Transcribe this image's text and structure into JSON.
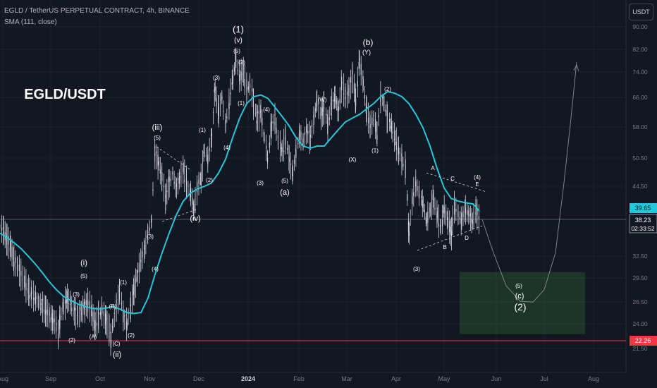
{
  "header": {
    "title": "EGLD / TetherUS PERPETUAL CONTRACT, 4h, BINANCE",
    "indicator": "SMA (111, close)",
    "currency_button": "USDT"
  },
  "colors": {
    "background": "#131722",
    "candles": "#d1d4dc",
    "sma": "#26c6da",
    "grid": "#1e222d",
    "support_line": "#f23645",
    "target_zone": "rgba(56,142,60,0.25)",
    "projection": "#8a8d96",
    "labels": "#ffffff"
  },
  "chart_data": {
    "type": "candlestick",
    "title": "EGLD/USDT",
    "y_axis": {
      "ticks": [
        "90.00",
        "82.00",
        "74.00",
        "66.00",
        "58.00",
        "50.50",
        "44.50",
        "38.23",
        "32.50",
        "29.50",
        "26.50",
        "24.00",
        "21.50"
      ],
      "scale": "log",
      "range": [
        20.5,
        92
      ]
    },
    "x_axis": {
      "ticks": [
        "Aug",
        "Sep",
        "Oct",
        "Nov",
        "Dec",
        "2024",
        "Feb",
        "Mar",
        "Apr",
        "May",
        "Jun",
        "Jul",
        "Aug"
      ]
    },
    "price_labels": [
      {
        "label": "39.65",
        "color": "#26c6da"
      },
      {
        "label": "38.23",
        "sub": "02:33:52",
        "color": "#ffffff"
      },
      {
        "label": "22.26",
        "color": "#f23645"
      }
    ],
    "current_price": 38.23,
    "sma_value": 39.65,
    "support_level": 22.26,
    "countdown": "02:33:52",
    "series": [
      {
        "name": "SMA (111, close)",
        "values": [
          [
            0,
            36
          ],
          [
            4,
            35.3
          ],
          [
            8,
            34.5
          ],
          [
            12,
            33.6
          ],
          [
            16,
            32.5
          ],
          [
            20,
            31.4
          ],
          [
            24,
            30.2
          ],
          [
            28,
            29
          ],
          [
            32,
            28
          ],
          [
            36,
            27.2
          ],
          [
            40,
            26.7
          ],
          [
            44,
            26.3
          ],
          [
            48,
            26
          ],
          [
            52,
            25.8
          ],
          [
            56,
            25.7
          ],
          [
            60,
            25.8
          ],
          [
            64,
            26
          ],
          [
            68,
            25.7
          ],
          [
            72,
            25.3
          ],
          [
            76,
            25.2
          ],
          [
            80,
            25.3
          ],
          [
            84,
            27
          ],
          [
            88,
            30
          ],
          [
            92,
            33
          ],
          [
            96,
            36
          ],
          [
            100,
            39
          ],
          [
            104,
            41.5
          ],
          [
            108,
            43
          ],
          [
            112,
            43.8
          ],
          [
            116,
            44.3
          ],
          [
            120,
            45
          ],
          [
            124,
            47
          ],
          [
            128,
            50
          ],
          [
            132,
            55
          ],
          [
            136,
            60
          ],
          [
            140,
            64
          ],
          [
            144,
            66
          ],
          [
            148,
            66.5
          ],
          [
            152,
            65.5
          ],
          [
            156,
            63
          ],
          [
            160,
            60.5
          ],
          [
            164,
            58
          ],
          [
            168,
            55
          ],
          [
            172,
            53
          ],
          [
            176,
            52.5
          ],
          [
            180,
            53
          ],
          [
            184,
            53
          ],
          [
            188,
            55
          ],
          [
            192,
            57
          ],
          [
            196,
            59
          ],
          [
            200,
            60
          ],
          [
            204,
            61
          ],
          [
            208,
            62.5
          ],
          [
            212,
            64
          ],
          [
            216,
            66
          ],
          [
            220,
            67.5
          ],
          [
            224,
            67
          ],
          [
            228,
            66
          ],
          [
            232,
            64
          ],
          [
            236,
            61
          ],
          [
            240,
            57.5
          ],
          [
            244,
            53
          ],
          [
            248,
            48
          ],
          [
            252,
            44
          ],
          [
            256,
            42
          ],
          [
            260,
            41.5
          ],
          [
            264,
            41.2
          ],
          [
            268,
            41
          ],
          [
            270,
            40.5
          ],
          [
            272,
            39.65
          ]
        ]
      }
    ],
    "ohlc_path": [
      [
        0,
        37
      ],
      [
        2,
        36.5
      ],
      [
        4,
        35
      ],
      [
        6,
        34
      ],
      [
        8,
        32
      ],
      [
        10,
        31
      ],
      [
        12,
        30
      ],
      [
        14,
        29
      ],
      [
        16,
        28
      ],
      [
        18,
        27.5
      ],
      [
        20,
        27
      ],
      [
        22,
        26.5
      ],
      [
        24,
        26
      ],
      [
        26,
        25.5
      ],
      [
        28,
        25
      ],
      [
        30,
        24.5
      ],
      [
        32,
        24
      ],
      [
        33,
        23
      ],
      [
        34,
        24.5
      ],
      [
        36,
        26
      ],
      [
        38,
        27
      ],
      [
        40,
        26.5
      ],
      [
        42,
        25.5
      ],
      [
        44,
        25
      ],
      [
        46,
        25.5
      ],
      [
        48,
        26
      ],
      [
        50,
        26.5
      ],
      [
        52,
        25.5
      ],
      [
        54,
        24
      ],
      [
        56,
        25
      ],
      [
        58,
        25.5
      ],
      [
        60,
        24.5
      ],
      [
        62,
        23.5
      ],
      [
        63,
        22.4
      ],
      [
        64,
        24
      ],
      [
        66,
        26
      ],
      [
        68,
        28
      ],
      [
        70,
        25
      ],
      [
        72,
        24
      ],
      [
        74,
        26
      ],
      [
        76,
        28
      ],
      [
        78,
        30
      ],
      [
        80,
        32
      ],
      [
        82,
        33.5
      ],
      [
        84,
        36
      ],
      [
        86,
        38
      ],
      [
        88,
        52
      ],
      [
        90,
        49
      ],
      [
        92,
        46
      ],
      [
        94,
        42
      ],
      [
        96,
        45
      ],
      [
        98,
        47
      ],
      [
        100,
        44
      ],
      [
        102,
        46
      ],
      [
        104,
        48
      ],
      [
        106,
        45
      ],
      [
        108,
        43
      ],
      [
        110,
        40
      ],
      [
        112,
        44
      ],
      [
        114,
        46
      ],
      [
        116,
        52
      ],
      [
        118,
        50
      ],
      [
        120,
        55
      ],
      [
        122,
        68
      ],
      [
        124,
        62
      ],
      [
        126,
        66
      ],
      [
        128,
        58
      ],
      [
        130,
        64
      ],
      [
        132,
        72
      ],
      [
        134,
        78
      ],
      [
        136,
        72
      ],
      [
        138,
        74
      ],
      [
        140,
        68
      ],
      [
        142,
        70
      ],
      [
        144,
        64
      ],
      [
        146,
        60
      ],
      [
        148,
        62
      ],
      [
        150,
        55
      ],
      [
        152,
        50
      ],
      [
        154,
        58
      ],
      [
        156,
        60
      ],
      [
        158,
        54
      ],
      [
        160,
        52
      ],
      [
        162,
        55
      ],
      [
        164,
        50
      ],
      [
        166,
        47
      ],
      [
        168,
        52
      ],
      [
        170,
        56
      ],
      [
        172,
        54
      ],
      [
        174,
        57
      ],
      [
        176,
        55
      ],
      [
        178,
        60
      ],
      [
        180,
        65
      ],
      [
        182,
        61
      ],
      [
        184,
        63
      ],
      [
        186,
        58
      ],
      [
        188,
        64
      ],
      [
        190,
        66
      ],
      [
        192,
        62
      ],
      [
        194,
        70
      ],
      [
        196,
        66
      ],
      [
        198,
        68
      ],
      [
        200,
        72
      ],
      [
        202,
        65
      ],
      [
        204,
        78
      ],
      [
        206,
        70
      ],
      [
        208,
        62
      ],
      [
        210,
        58
      ],
      [
        212,
        60
      ],
      [
        214,
        56
      ],
      [
        216,
        66
      ],
      [
        218,
        64
      ],
      [
        220,
        60
      ],
      [
        222,
        58
      ],
      [
        224,
        55
      ],
      [
        226,
        52
      ],
      [
        228,
        50
      ],
      [
        230,
        48
      ],
      [
        232,
        36
      ],
      [
        234,
        42
      ],
      [
        236,
        45
      ],
      [
        238,
        43
      ],
      [
        240,
        41
      ],
      [
        242,
        38
      ],
      [
        244,
        40
      ],
      [
        246,
        42
      ],
      [
        248,
        39
      ],
      [
        250,
        37
      ],
      [
        252,
        40
      ],
      [
        254,
        38
      ],
      [
        256,
        36
      ],
      [
        258,
        41
      ],
      [
        260,
        39
      ],
      [
        262,
        38
      ],
      [
        264,
        40
      ],
      [
        266,
        39
      ],
      [
        268,
        38
      ],
      [
        270,
        40
      ],
      [
        272,
        38.23
      ]
    ],
    "projection": {
      "target_zone_price_range": [
        23.0,
        30.3
      ],
      "path_prices": [
        38.23,
        33,
        28.5,
        26.6,
        26.5,
        28,
        33,
        45,
        60,
        77
      ]
    },
    "annotations": [
      {
        "text": "EGLD/USDT",
        "size": "title"
      },
      {
        "text": "(1)"
      },
      {
        "text": "(v)"
      },
      {
        "text": "(5)"
      },
      {
        "text": "(b)"
      },
      {
        "text": "(Y)"
      },
      {
        "text": "(iii)"
      },
      {
        "text": "(5)"
      },
      {
        "text": "(iv)"
      },
      {
        "text": "(i)"
      },
      {
        "text": "(5)"
      },
      {
        "text": "(3)"
      },
      {
        "text": "(2)"
      },
      {
        "text": "(A)"
      },
      {
        "text": "(B)"
      },
      {
        "text": "(C)"
      },
      {
        "text": "(ii)"
      },
      {
        "text": "(1)"
      },
      {
        "text": "(2)"
      },
      {
        "text": "(3)"
      },
      {
        "text": "(4)"
      },
      {
        "text": "(1)"
      },
      {
        "text": "(2)"
      },
      {
        "text": "(3)"
      },
      {
        "text": "(4)"
      },
      {
        "text": "(1)"
      },
      {
        "text": "(2)"
      },
      {
        "text": "(3)"
      },
      {
        "text": "(4)"
      },
      {
        "text": "(5)"
      },
      {
        "text": "(a)"
      },
      {
        "text": "(W)"
      },
      {
        "text": "(X)"
      },
      {
        "text": "(1)"
      },
      {
        "text": "(2)"
      },
      {
        "text": "(3)"
      },
      {
        "text": "A"
      },
      {
        "text": "B"
      },
      {
        "text": "C"
      },
      {
        "text": "D"
      },
      {
        "text": "E"
      },
      {
        "text": "(4)"
      },
      {
        "text": "(5)"
      },
      {
        "text": "(c)"
      },
      {
        "text": "(2)"
      },
      {
        "text": "(3)"
      },
      {
        "text": "(2)"
      }
    ]
  }
}
